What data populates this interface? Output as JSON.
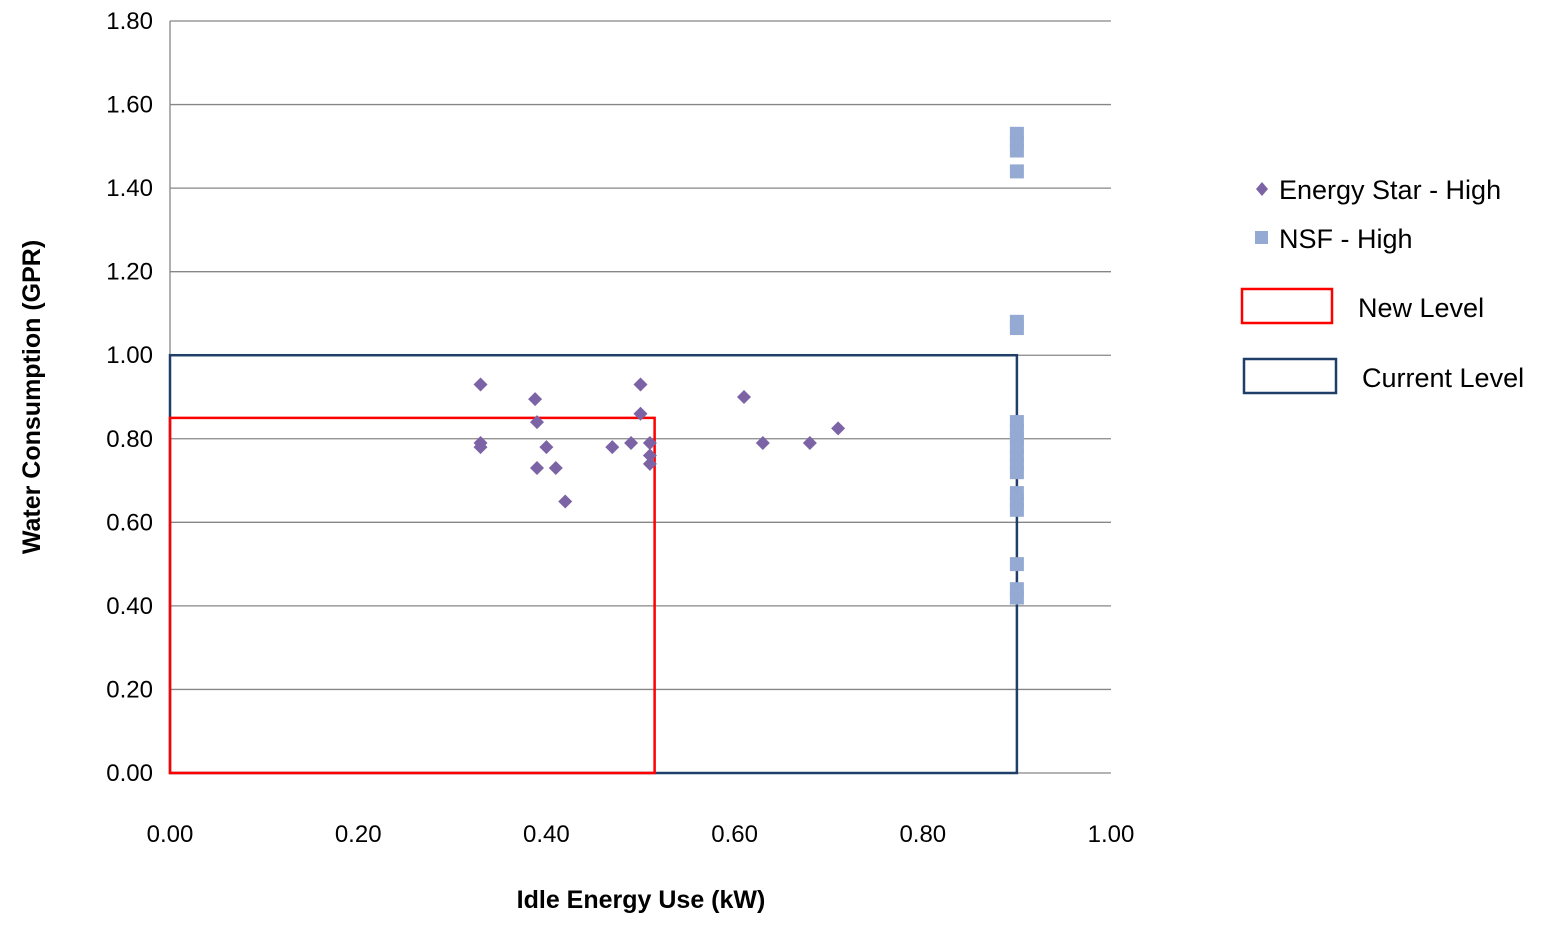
{
  "chart_data": {
    "type": "scatter",
    "title": "",
    "xlabel": "Idle Energy Use (kW)",
    "ylabel": "Water Consumption (GPR)",
    "xlim": [
      0,
      1
    ],
    "ylim": [
      0,
      1.8
    ],
    "x_ticks": [
      "0.00",
      "0.20",
      "0.40",
      "0.60",
      "0.80",
      "1.00"
    ],
    "y_ticks": [
      "0.00",
      "0.20",
      "0.40",
      "0.60",
      "0.80",
      "1.00",
      "1.20",
      "1.40",
      "1.60",
      "1.80"
    ],
    "grid": {
      "horizontal": true,
      "vertical": false
    },
    "legend_position": "right",
    "series": [
      {
        "name": "Energy Star - High",
        "marker": "diamond",
        "color": "#7b63a6",
        "points": [
          [
            0.33,
            0.93
          ],
          [
            0.33,
            0.79
          ],
          [
            0.33,
            0.78
          ],
          [
            0.388,
            0.895
          ],
          [
            0.39,
            0.84
          ],
          [
            0.39,
            0.73
          ],
          [
            0.4,
            0.78
          ],
          [
            0.41,
            0.73
          ],
          [
            0.42,
            0.65
          ],
          [
            0.47,
            0.78
          ],
          [
            0.49,
            0.79
          ],
          [
            0.5,
            0.93
          ],
          [
            0.5,
            0.86
          ],
          [
            0.51,
            0.79
          ],
          [
            0.51,
            0.76
          ],
          [
            0.51,
            0.74
          ],
          [
            0.61,
            0.9
          ],
          [
            0.63,
            0.79
          ],
          [
            0.68,
            0.79
          ],
          [
            0.71,
            0.825
          ]
        ]
      },
      {
        "name": "NSF - High",
        "marker": "square",
        "color": "#95aad3",
        "points": [
          [
            0.9,
            1.53
          ],
          [
            0.9,
            1.51
          ],
          [
            0.9,
            1.49
          ],
          [
            0.9,
            1.44
          ],
          [
            0.9,
            1.08
          ],
          [
            0.9,
            1.065
          ],
          [
            0.9,
            0.84
          ],
          [
            0.9,
            0.82
          ],
          [
            0.9,
            0.8
          ],
          [
            0.9,
            0.78
          ],
          [
            0.9,
            0.76
          ],
          [
            0.9,
            0.74
          ],
          [
            0.9,
            0.72
          ],
          [
            0.9,
            0.67
          ],
          [
            0.9,
            0.65
          ],
          [
            0.9,
            0.63
          ],
          [
            0.9,
            0.5
          ],
          [
            0.9,
            0.44
          ],
          [
            0.9,
            0.42
          ]
        ]
      }
    ],
    "regions": [
      {
        "name": "New Level",
        "color": "#ff0000",
        "x": [
          0,
          0.515
        ],
        "y": [
          0,
          0.85
        ]
      },
      {
        "name": "Current Level",
        "color": "#1f3f68",
        "x": [
          0,
          0.9
        ],
        "y": [
          0,
          1.0
        ]
      }
    ]
  }
}
